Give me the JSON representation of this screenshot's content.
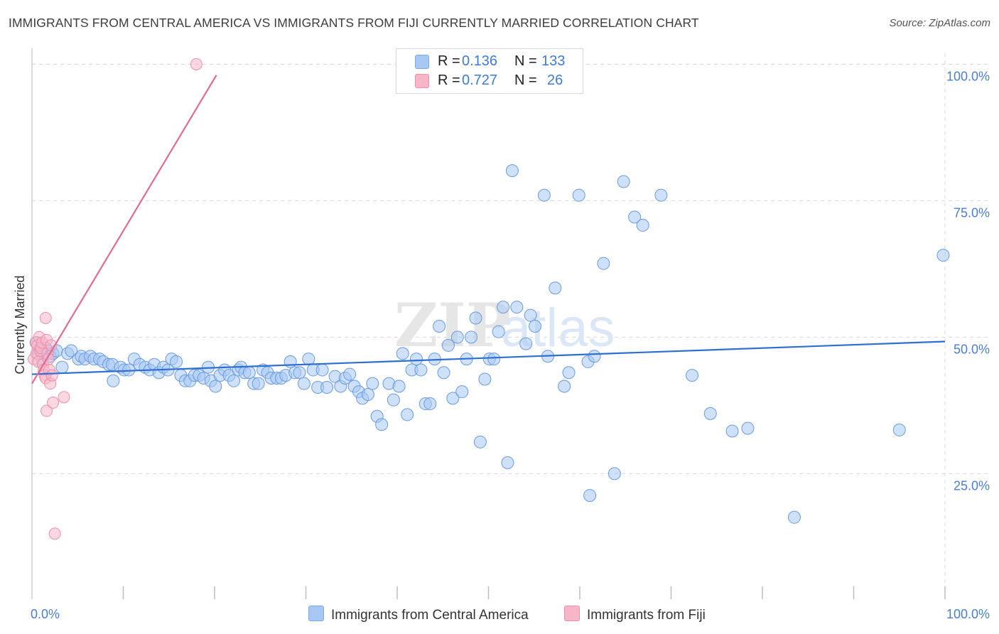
{
  "header": {
    "title": "IMMIGRANTS FROM CENTRAL AMERICA VS IMMIGRANTS FROM FIJI CURRENTLY MARRIED CORRELATION CHART",
    "source": "Source: ZipAtlas.com"
  },
  "legend": {
    "rows": [
      {
        "r_label": "R =",
        "r_value": "0.136",
        "n_label": "N =",
        "n_value": "133",
        "color": "#a8c8f4"
      },
      {
        "r_label": "R =",
        "r_value": "0.727",
        "n_label": "N =",
        "n_value": "26",
        "color": "#f7b6c8"
      }
    ]
  },
  "bottom_legend": {
    "series1": "Immigrants from Central America",
    "series2": "Immigrants from Fiji"
  },
  "colors": {
    "blue_fill": "#a8c8f4",
    "blue_line": "#2e6fd0",
    "pink_fill": "#f7b6c8",
    "pink_line": "#e06c93",
    "tick_text": "#4a7fcb",
    "grid": "#d8d8d8"
  },
  "chart_data": {
    "type": "scatter",
    "title": "IMMIGRANTS FROM CENTRAL AMERICA VS IMMIGRANTS FROM FIJI CURRENTLY MARRIED CORRELATION CHART",
    "ylabel": "Currently Married",
    "x_tick_labels": [
      "0.0%",
      "100.0%"
    ],
    "y_tick_labels": [
      "25.0%",
      "50.0%",
      "75.0%",
      "100.0%"
    ],
    "y_ticks": [
      25,
      50,
      75,
      100
    ],
    "xlim": [
      0,
      100
    ],
    "ylim": [
      2,
      102
    ],
    "grid": true,
    "legend_placement": "top-center",
    "series": [
      {
        "name": "Immigrants from Central America",
        "r": 0.136,
        "n": 133,
        "trend": [
          [
            0,
            43.2
          ],
          [
            100,
            49.2
          ]
        ],
        "points": [
          [
            0.5,
            49
          ],
          [
            0.7,
            47
          ],
          [
            0.9,
            48
          ],
          [
            1.1,
            46
          ],
          [
            1.3,
            47
          ],
          [
            1.5,
            48
          ],
          [
            1.7,
            47.5
          ],
          [
            2.0,
            46.5
          ],
          [
            2.3,
            47
          ],
          [
            2.7,
            47.5
          ],
          [
            3.3,
            44.5
          ],
          [
            3.9,
            47
          ],
          [
            4.3,
            47.5
          ],
          [
            5.1,
            46
          ],
          [
            5.4,
            46.5
          ],
          [
            5.8,
            46
          ],
          [
            6.4,
            46.5
          ],
          [
            6.8,
            46
          ],
          [
            7.4,
            46
          ],
          [
            7.8,
            45.5
          ],
          [
            8.4,
            45
          ],
          [
            8.8,
            45
          ],
          [
            8.9,
            42
          ],
          [
            9.7,
            44.5
          ],
          [
            10.1,
            44
          ],
          [
            10.6,
            44
          ],
          [
            11.2,
            46
          ],
          [
            11.8,
            45
          ],
          [
            12.4,
            44.5
          ],
          [
            12.9,
            44
          ],
          [
            13.4,
            45
          ],
          [
            13.9,
            43.5
          ],
          [
            14.4,
            44.5
          ],
          [
            14.9,
            44
          ],
          [
            15.3,
            46
          ],
          [
            15.8,
            45.5
          ],
          [
            16.3,
            43
          ],
          [
            16.8,
            42
          ],
          [
            17.3,
            42
          ],
          [
            17.8,
            43
          ],
          [
            18.3,
            43
          ],
          [
            18.8,
            42.5
          ],
          [
            19.3,
            44.5
          ],
          [
            19.6,
            42
          ],
          [
            20.1,
            41
          ],
          [
            20.6,
            43
          ],
          [
            21.1,
            44
          ],
          [
            21.6,
            43
          ],
          [
            22.1,
            42
          ],
          [
            22.6,
            44
          ],
          [
            22.9,
            44.5
          ],
          [
            23.3,
            43.5
          ],
          [
            23.8,
            43.5
          ],
          [
            24.3,
            41.5
          ],
          [
            24.8,
            41.5
          ],
          [
            25.3,
            44
          ],
          [
            25.8,
            43.5
          ],
          [
            26.2,
            42.5
          ],
          [
            26.8,
            42.5
          ],
          [
            27.3,
            42.5
          ],
          [
            27.8,
            43
          ],
          [
            28.3,
            45.5
          ],
          [
            28.8,
            43.5
          ],
          [
            29.3,
            43.5
          ],
          [
            29.8,
            41.5
          ],
          [
            30.3,
            46
          ],
          [
            30.8,
            44
          ],
          [
            31.3,
            40.8
          ],
          [
            31.8,
            44
          ],
          [
            32.3,
            40.8
          ],
          [
            33.2,
            42.8
          ],
          [
            33.8,
            41
          ],
          [
            34.3,
            42.5
          ],
          [
            34.8,
            43.2
          ],
          [
            35.3,
            41
          ],
          [
            35.8,
            40
          ],
          [
            36.2,
            38.8
          ],
          [
            36.8,
            39.5
          ],
          [
            37.3,
            41.5
          ],
          [
            37.8,
            35.5
          ],
          [
            38.3,
            34
          ],
          [
            39.1,
            41.5
          ],
          [
            39.6,
            38.5
          ],
          [
            40.2,
            41
          ],
          [
            40.6,
            47
          ],
          [
            41.1,
            35.8
          ],
          [
            41.6,
            44
          ],
          [
            42.1,
            46
          ],
          [
            42.6,
            44
          ],
          [
            43.1,
            37.8
          ],
          [
            43.6,
            37.8
          ],
          [
            44.1,
            46
          ],
          [
            44.6,
            52
          ],
          [
            45.1,
            43.5
          ],
          [
            45.6,
            48.5
          ],
          [
            46.1,
            38.8
          ],
          [
            46.6,
            50
          ],
          [
            47.1,
            40
          ],
          [
            47.6,
            46
          ],
          [
            48.1,
            50
          ],
          [
            48.6,
            53.5
          ],
          [
            49.1,
            30.8
          ],
          [
            49.6,
            42.3
          ],
          [
            50.1,
            46
          ],
          [
            50.6,
            46
          ],
          [
            51.1,
            51
          ],
          [
            51.6,
            55.5
          ],
          [
            52.1,
            27
          ],
          [
            52.6,
            80.5
          ],
          [
            53.1,
            55.5
          ],
          [
            54.1,
            48.8
          ],
          [
            54.6,
            54
          ],
          [
            55.1,
            52
          ],
          [
            56.1,
            76
          ],
          [
            56.5,
            46.5
          ],
          [
            57.3,
            59
          ],
          [
            58.3,
            41
          ],
          [
            58.8,
            43.5
          ],
          [
            59.9,
            76
          ],
          [
            60.9,
            45.5
          ],
          [
            61.1,
            21
          ],
          [
            61.6,
            46.5
          ],
          [
            62.6,
            63.5
          ],
          [
            63.8,
            25
          ],
          [
            64.8,
            78.5
          ],
          [
            66.0,
            72
          ],
          [
            66.9,
            70.5
          ],
          [
            68.9,
            76
          ],
          [
            72.3,
            43
          ],
          [
            74.3,
            36
          ],
          [
            76.7,
            32.8
          ],
          [
            78.4,
            33.3
          ],
          [
            83.5,
            17
          ],
          [
            95.0,
            33
          ],
          [
            99.8,
            65
          ]
        ]
      },
      {
        "name": "Immigrants from Fiji",
        "r": 0.727,
        "n": 26,
        "trend": [
          [
            0,
            41.5
          ],
          [
            20.2,
            98
          ]
        ],
        "points": [
          [
            0.2,
            46
          ],
          [
            0.4,
            49
          ],
          [
            0.5,
            47
          ],
          [
            0.6,
            48.5
          ],
          [
            0.7,
            45.5
          ],
          [
            0.8,
            50
          ],
          [
            0.9,
            47.5
          ],
          [
            1.0,
            48
          ],
          [
            1.1,
            49
          ],
          [
            1.2,
            45
          ],
          [
            1.3,
            44
          ],
          [
            1.4,
            43
          ],
          [
            1.5,
            42.5
          ],
          [
            1.6,
            49.5
          ],
          [
            1.7,
            47
          ],
          [
            1.8,
            46
          ],
          [
            1.5,
            53.5
          ],
          [
            1.6,
            36.5
          ],
          [
            1.9,
            44
          ],
          [
            2.0,
            41.5
          ],
          [
            2.1,
            48.5
          ],
          [
            2.2,
            43
          ],
          [
            2.3,
            38
          ],
          [
            2.5,
            14
          ],
          [
            3.5,
            39
          ],
          [
            18.0,
            100
          ]
        ]
      }
    ]
  }
}
